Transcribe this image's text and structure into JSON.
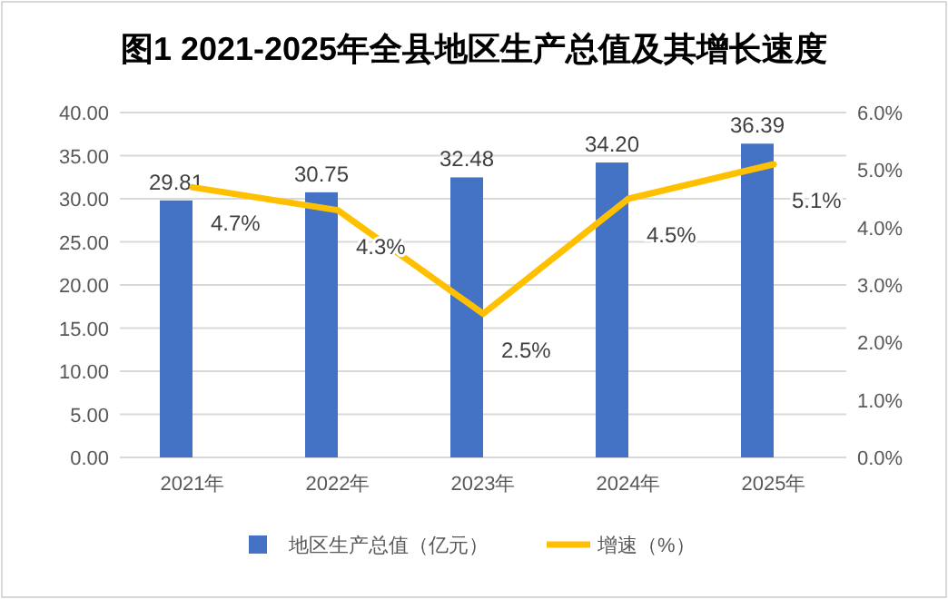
{
  "chart_data": {
    "type": "bar",
    "title": "图1  2021-2025年全县地区生产总值及其增长速度",
    "categories": [
      "2021年",
      "2022年",
      "2023年",
      "2024年",
      "2025年"
    ],
    "series": [
      {
        "name": "地区生产总值（亿元）",
        "color": "#4472c4",
        "values": [
          29.81,
          30.75,
          32.48,
          34.2,
          36.39
        ],
        "value_labels": [
          "29.81",
          "30.75",
          "32.48",
          "34.20",
          "36.39"
        ]
      },
      {
        "name": "增速（%）",
        "type": "line",
        "axis": "y2",
        "color": "#ffc000",
        "values": [
          4.7,
          4.3,
          2.5,
          4.5,
          5.1
        ],
        "value_labels": [
          "4.7%",
          "4.3%",
          "2.5%",
          "4.5%",
          "5.1%"
        ]
      }
    ],
    "ylim": [
      0,
      40
    ],
    "yticks": [
      {
        "value": 0,
        "label": "0.00"
      },
      {
        "value": 5,
        "label": "5.00"
      },
      {
        "value": 10,
        "label": "10.00"
      },
      {
        "value": 15,
        "label": "15.00"
      },
      {
        "value": 20,
        "label": "20.00"
      },
      {
        "value": 25,
        "label": "25.00"
      },
      {
        "value": 30,
        "label": "30.00"
      },
      {
        "value": 35,
        "label": "35.00"
      },
      {
        "value": 40,
        "label": "40.00"
      }
    ],
    "y2lim": [
      0,
      6
    ],
    "y2ticks": [
      {
        "value": 0,
        "label": "0.0%"
      },
      {
        "value": 1,
        "label": "1.0%"
      },
      {
        "value": 2,
        "label": "2.0%"
      },
      {
        "value": 3,
        "label": "3.0%"
      },
      {
        "value": 4,
        "label": "4.0%"
      },
      {
        "value": 5,
        "label": "5.0%"
      },
      {
        "value": 6,
        "label": "6.0%"
      }
    ],
    "grid": "y",
    "legend": "bottom",
    "marker": "none",
    "line_style": "solid"
  }
}
